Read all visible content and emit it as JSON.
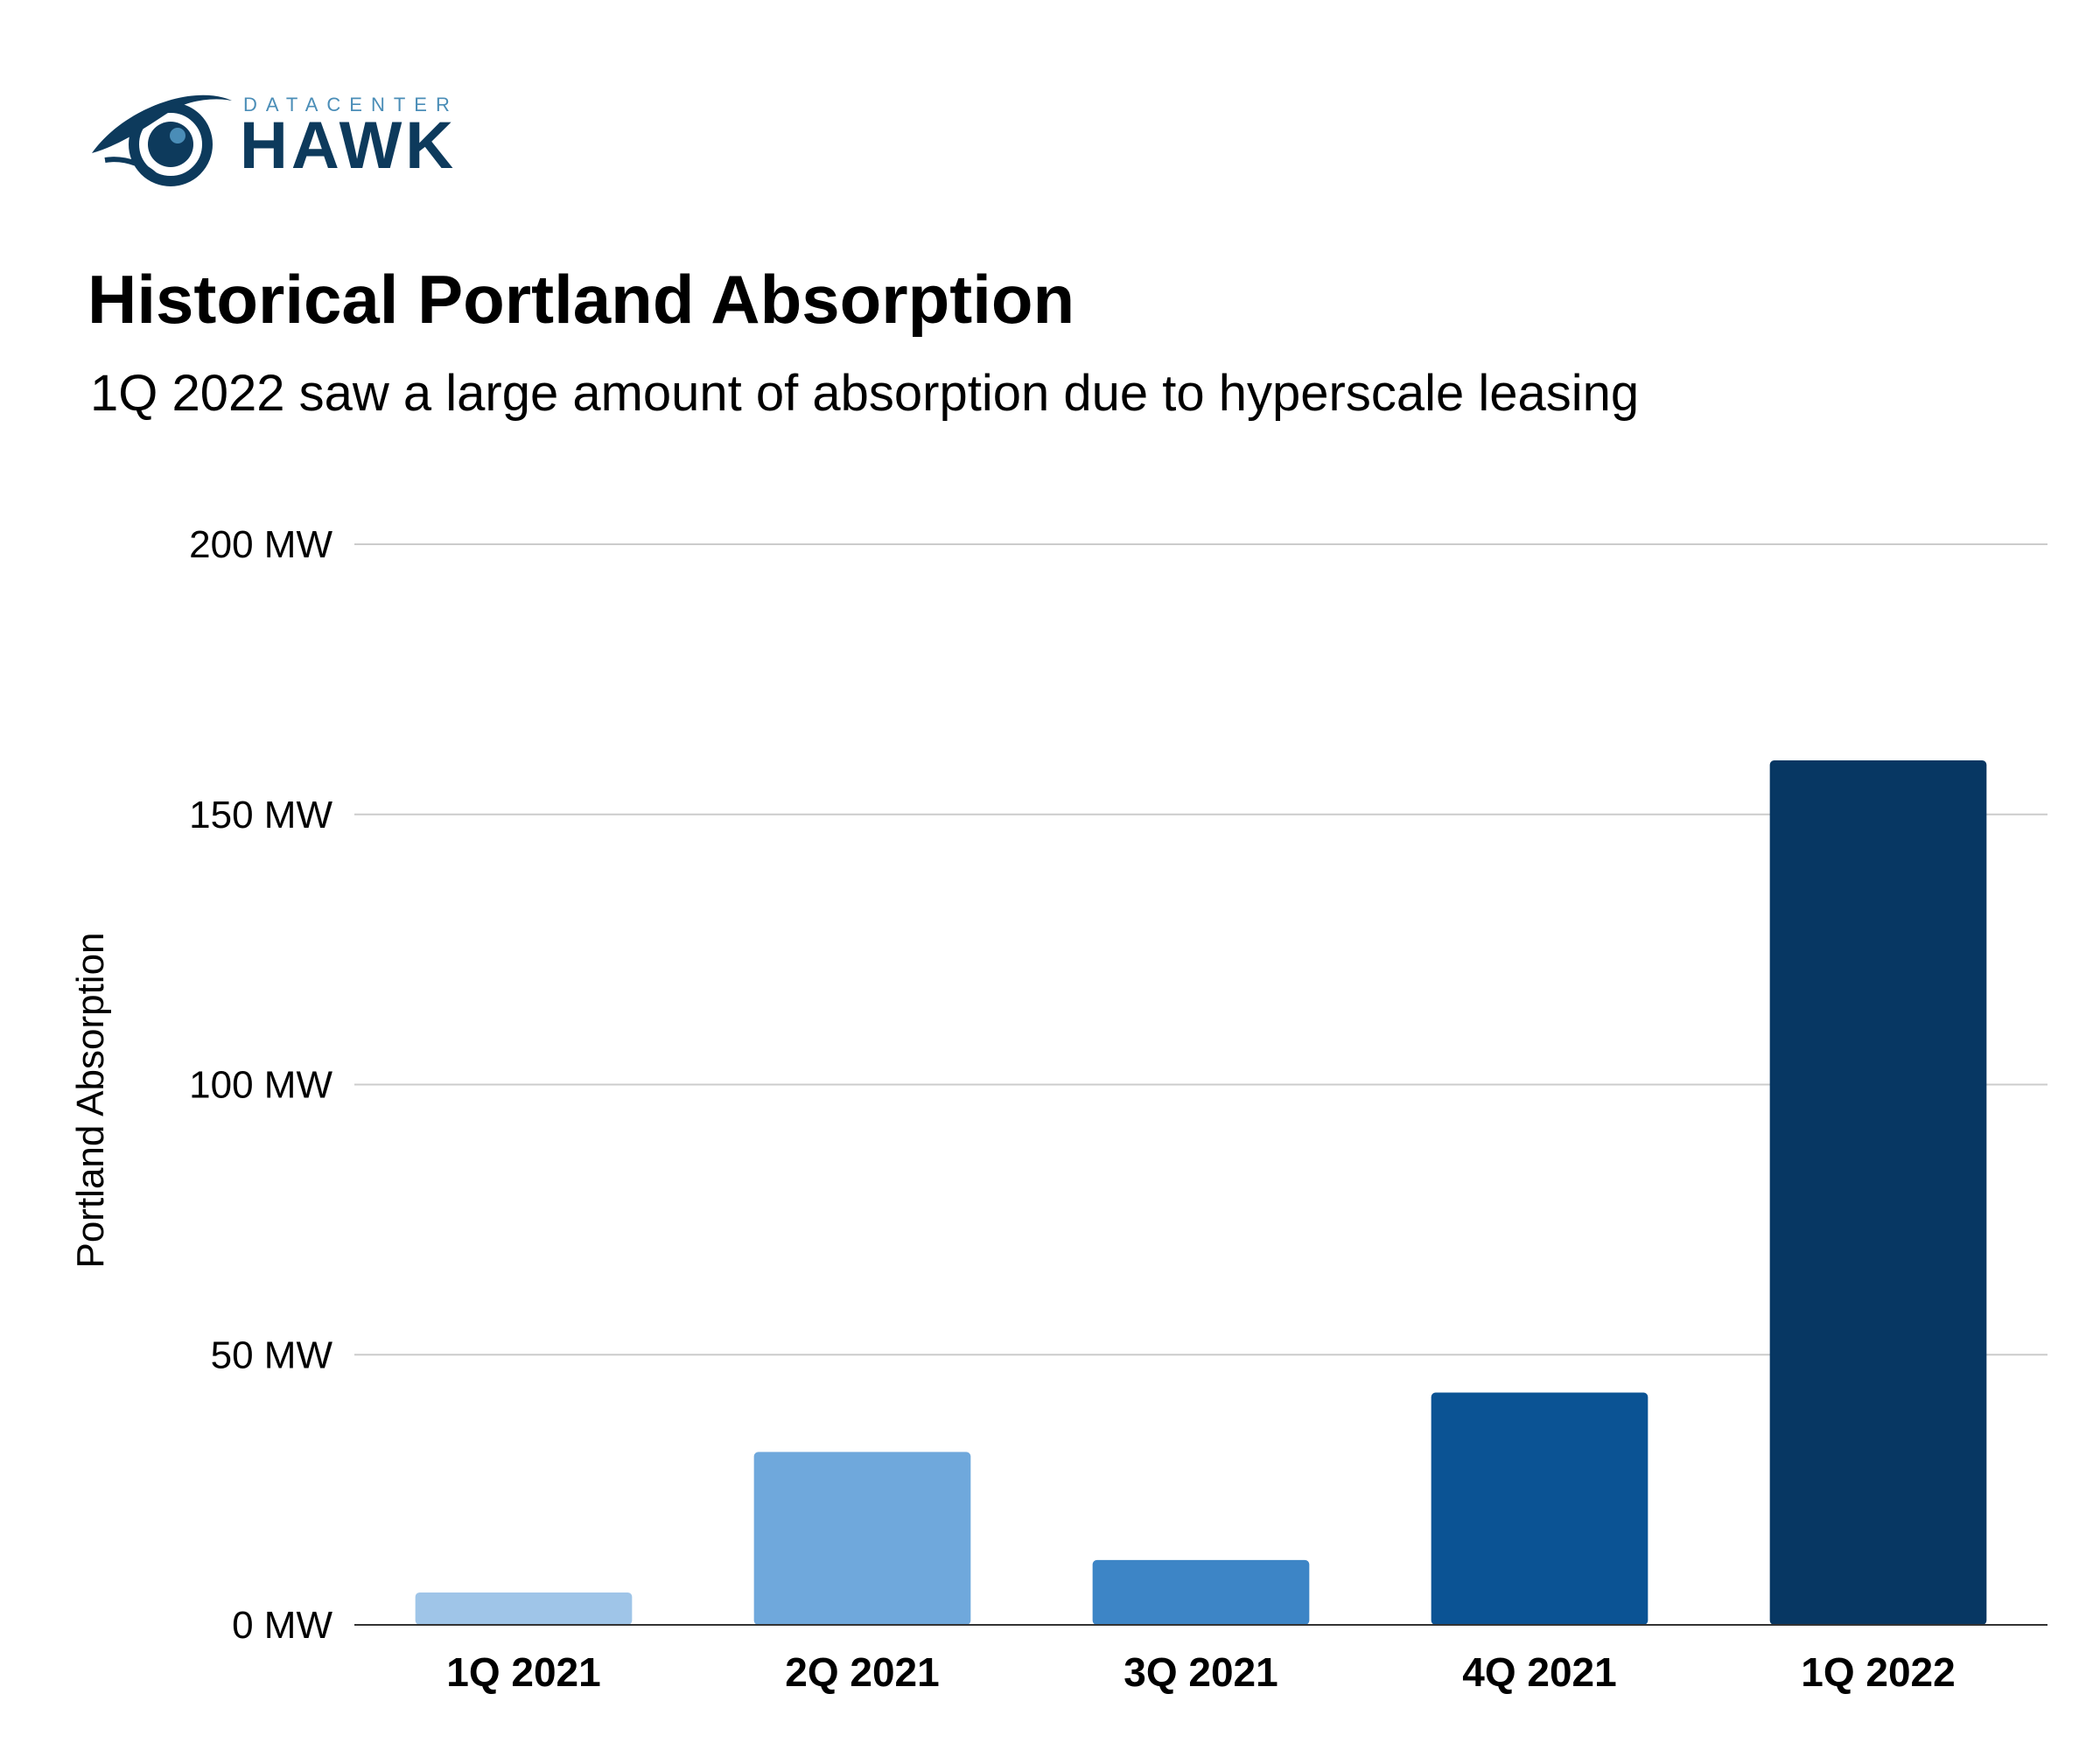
{
  "brand": {
    "top": "DATACENTER",
    "main": "HAWK",
    "colors": {
      "dark": "#0d3a5c",
      "light": "#4a8db7"
    }
  },
  "chart_data": {
    "type": "bar",
    "title": "Historical Portland Absorption",
    "subtitle": "1Q 2022 saw a large amount of absorption due to hyperscale leasing",
    "xlabel": "",
    "ylabel": "Portland Absorption",
    "categories": [
      "1Q 2021",
      "2Q 2021",
      "3Q 2021",
      "4Q 2021",
      "1Q 2022"
    ],
    "values": [
      6,
      32,
      12,
      43,
      160
    ],
    "colors": [
      "#9fc5e8",
      "#6fa8dc",
      "#3d85c6",
      "#0b5394",
      "#073763"
    ],
    "ylim": [
      0,
      200
    ],
    "yticks": [
      0,
      50,
      100,
      150,
      200
    ],
    "ytick_labels": [
      "0 MW",
      "50 MW",
      "100 MW",
      "150 MW",
      "200 MW"
    ],
    "grid": true,
    "legend": "none"
  }
}
